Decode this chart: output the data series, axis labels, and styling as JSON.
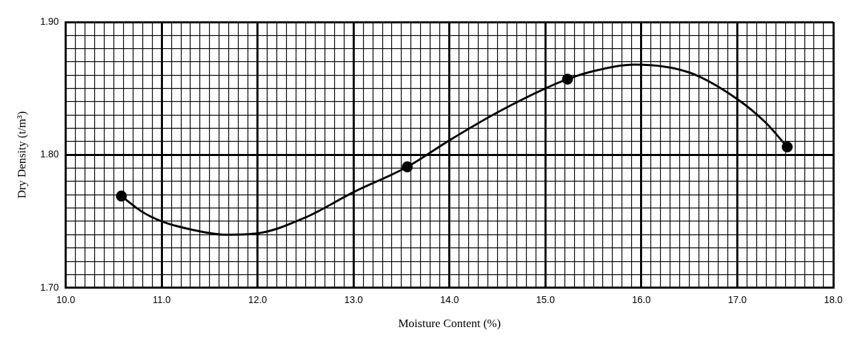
{
  "chart_data": {
    "type": "scatter",
    "xlabel": "Moisture Content (%)",
    "ylabel": "Dry Density (t/m³)",
    "series": [
      {
        "type": "scatter",
        "color": "#000000",
        "marker": "circle",
        "x": [
          10.58,
          13.56,
          15.23,
          17.52
        ],
        "values": [
          1.769,
          1.791,
          1.857,
          1.806
        ]
      },
      {
        "type": "line",
        "color": "#000000",
        "marker": "none",
        "x": [
          10.58,
          10.8,
          11.0,
          11.3,
          11.67,
          12.0,
          12.5,
          13.0,
          13.56,
          14.0,
          14.5,
          15.0,
          15.23,
          15.5,
          15.93,
          16.5,
          17.0,
          17.3,
          17.52
        ],
        "values": [
          1.769,
          1.757,
          1.75,
          1.744,
          1.74,
          1.741,
          1.753,
          1.772,
          1.791,
          1.811,
          1.832,
          1.85,
          1.857,
          1.863,
          1.868,
          1.862,
          1.842,
          1.824,
          1.806
        ]
      }
    ],
    "xlim": [
      10,
      18
    ],
    "ylim": [
      1.7,
      1.9
    ],
    "xticks": [
      {
        "value": 10,
        "label": "10.0"
      },
      {
        "value": 10.1,
        "label": null
      },
      {
        "value": 10.2,
        "label": null
      },
      {
        "value": 10.3,
        "label": null
      },
      {
        "value": 10.4,
        "label": null
      },
      {
        "value": 10.5,
        "label": null
      },
      {
        "value": 10.6,
        "label": null
      },
      {
        "value": 10.7,
        "label": null
      },
      {
        "value": 10.8,
        "label": null
      },
      {
        "value": 10.9,
        "label": null
      },
      {
        "value": 11,
        "label": "11.0"
      },
      {
        "value": 11.1,
        "label": null
      },
      {
        "value": 11.2,
        "label": null
      },
      {
        "value": 11.3,
        "label": null
      },
      {
        "value": 11.4,
        "label": null
      },
      {
        "value": 11.5,
        "label": null
      },
      {
        "value": 11.6,
        "label": null
      },
      {
        "value": 11.7,
        "label": null
      },
      {
        "value": 11.8,
        "label": null
      },
      {
        "value": 11.9,
        "label": null
      },
      {
        "value": 12,
        "label": "12.0"
      },
      {
        "value": 12.1,
        "label": null
      },
      {
        "value": 12.2,
        "label": null
      },
      {
        "value": 12.3,
        "label": null
      },
      {
        "value": 12.4,
        "label": null
      },
      {
        "value": 12.5,
        "label": null
      },
      {
        "value": 12.6,
        "label": null
      },
      {
        "value": 12.7,
        "label": null
      },
      {
        "value": 12.8,
        "label": null
      },
      {
        "value": 12.9,
        "label": null
      },
      {
        "value": 13,
        "label": "13.0"
      },
      {
        "value": 13.1,
        "label": null
      },
      {
        "value": 13.2,
        "label": null
      },
      {
        "value": 13.3,
        "label": null
      },
      {
        "value": 13.4,
        "label": null
      },
      {
        "value": 13.5,
        "label": null
      },
      {
        "value": 13.6,
        "label": null
      },
      {
        "value": 13.7,
        "label": null
      },
      {
        "value": 13.8,
        "label": null
      },
      {
        "value": 13.9,
        "label": null
      },
      {
        "value": 14,
        "label": "14.0"
      },
      {
        "value": 14.1,
        "label": null
      },
      {
        "value": 14.2,
        "label": null
      },
      {
        "value": 14.3,
        "label": null
      },
      {
        "value": 14.4,
        "label": null
      },
      {
        "value": 14.5,
        "label": null
      },
      {
        "value": 14.6,
        "label": null
      },
      {
        "value": 14.7,
        "label": null
      },
      {
        "value": 14.8,
        "label": null
      },
      {
        "value": 14.9,
        "label": null
      },
      {
        "value": 15,
        "label": "15.0"
      },
      {
        "value": 15.1,
        "label": null
      },
      {
        "value": 15.2,
        "label": null
      },
      {
        "value": 15.3,
        "label": null
      },
      {
        "value": 15.4,
        "label": null
      },
      {
        "value": 15.5,
        "label": null
      },
      {
        "value": 15.6,
        "label": null
      },
      {
        "value": 15.7,
        "label": null
      },
      {
        "value": 15.8,
        "label": null
      },
      {
        "value": 15.9,
        "label": null
      },
      {
        "value": 16,
        "label": "16.0"
      },
      {
        "value": 16.1,
        "label": null
      },
      {
        "value": 16.2,
        "label": null
      },
      {
        "value": 16.3,
        "label": null
      },
      {
        "value": 16.4,
        "label": null
      },
      {
        "value": 16.5,
        "label": null
      },
      {
        "value": 16.6,
        "label": null
      },
      {
        "value": 16.7,
        "label": null
      },
      {
        "value": 16.8,
        "label": null
      },
      {
        "value": 16.9,
        "label": null
      },
      {
        "value": 17,
        "label": "17.0"
      },
      {
        "value": 17.1,
        "label": null
      },
      {
        "value": 17.2,
        "label": null
      },
      {
        "value": 17.3,
        "label": null
      },
      {
        "value": 17.4,
        "label": null
      },
      {
        "value": 17.5,
        "label": null
      },
      {
        "value": 17.6,
        "label": null
      },
      {
        "value": 17.7,
        "label": null
      },
      {
        "value": 17.8,
        "label": null
      },
      {
        "value": 17.9,
        "label": null
      },
      {
        "value": 18,
        "label": "18.0"
      }
    ],
    "yticks": [
      {
        "value": 1.7,
        "label": "1.70"
      },
      {
        "value": 1.71,
        "label": null
      },
      {
        "value": 1.72,
        "label": null
      },
      {
        "value": 1.73,
        "label": null
      },
      {
        "value": 1.74,
        "label": null
      },
      {
        "value": 1.75,
        "label": null
      },
      {
        "value": 1.76,
        "label": null
      },
      {
        "value": 1.77,
        "label": null
      },
      {
        "value": 1.78,
        "label": null
      },
      {
        "value": 1.79,
        "label": null
      },
      {
        "value": 1.8,
        "label": "1.80"
      },
      {
        "value": 1.81,
        "label": null
      },
      {
        "value": 1.82,
        "label": null
      },
      {
        "value": 1.83,
        "label": null
      },
      {
        "value": 1.84,
        "label": null
      },
      {
        "value": 1.85,
        "label": null
      },
      {
        "value": 1.86,
        "label": null
      },
      {
        "value": 1.87,
        "label": null
      },
      {
        "value": 1.88,
        "label": null
      },
      {
        "value": 1.89,
        "label": null
      },
      {
        "value": 1.9,
        "label": "1.90"
      }
    ],
    "grid": true,
    "legend": false
  }
}
